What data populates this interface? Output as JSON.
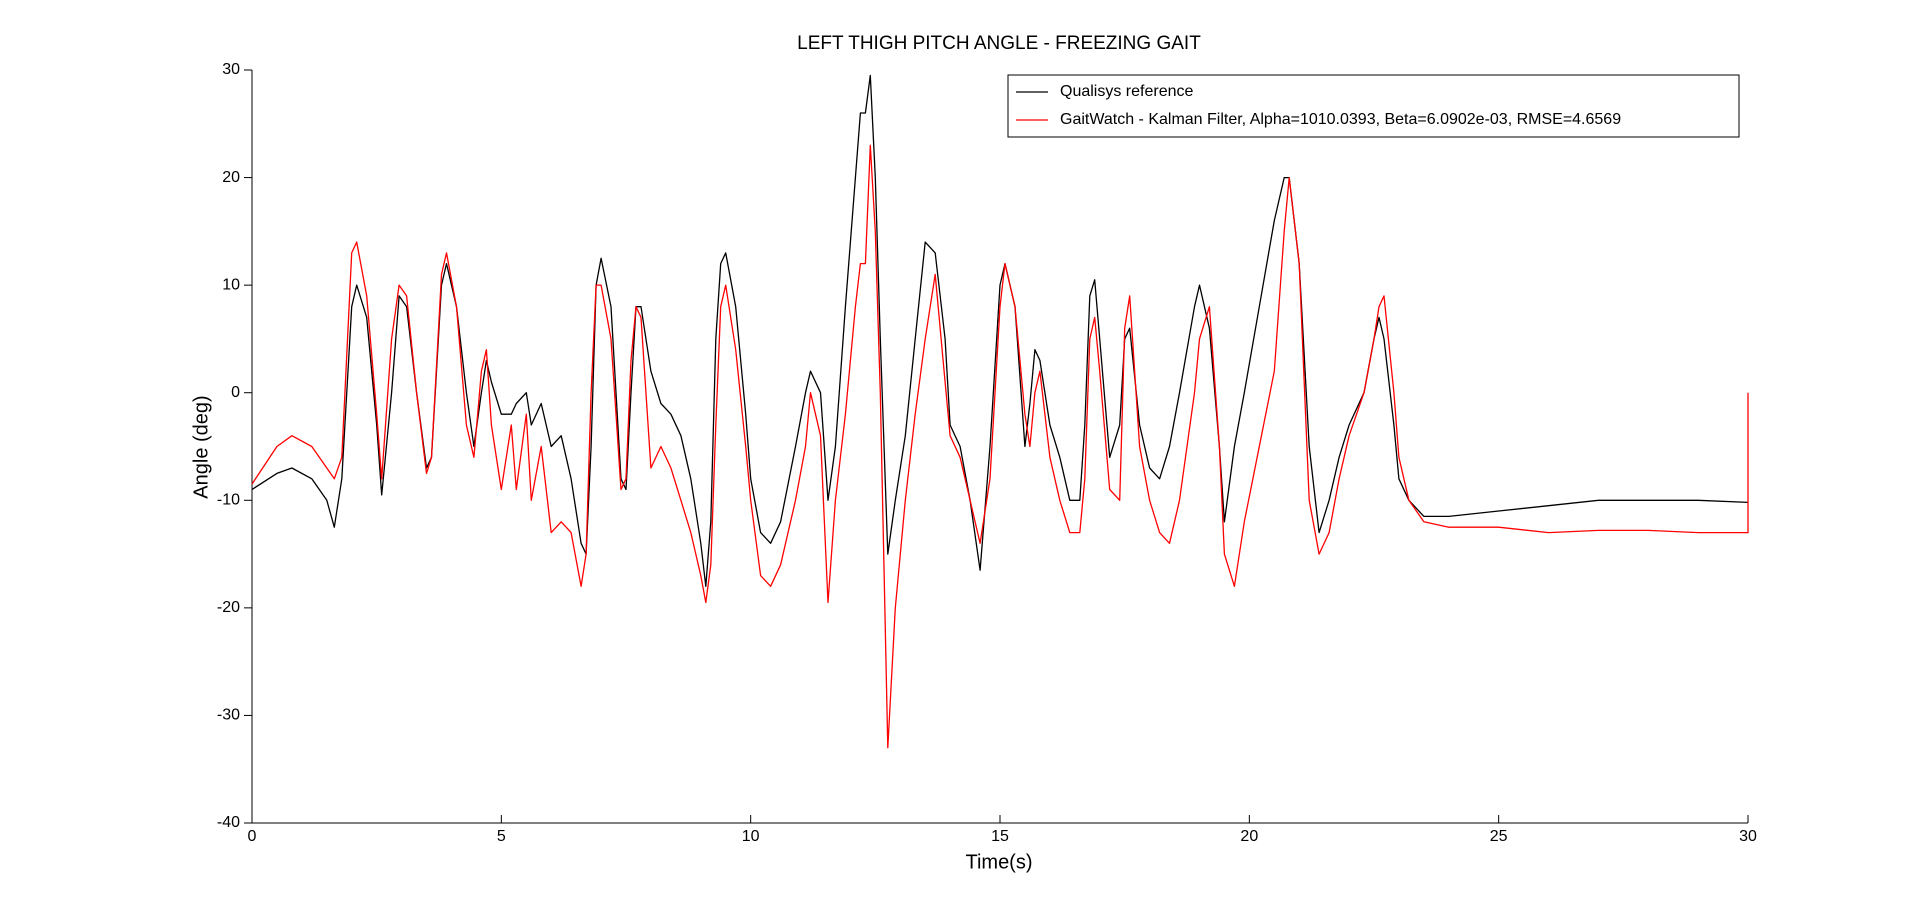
{
  "chart_data": {
    "type": "line",
    "title": "LEFT THIGH PITCH ANGLE - FREEZING GAIT",
    "x_label": "Time(s)",
    "y_label": "Angle (deg)",
    "xlim": [
      0,
      30
    ],
    "ylim": [
      -40,
      30
    ],
    "xticks": [
      0,
      5,
      10,
      15,
      20,
      25,
      30
    ],
    "yticks": [
      -40,
      -30,
      -20,
      -10,
      0,
      10,
      20,
      30
    ],
    "legend_position": "upper right",
    "x": [
      0,
      0.5,
      0.8,
      1.2,
      1.5,
      1.65,
      1.8,
      2.0,
      2.1,
      2.3,
      2.5,
      2.6,
      2.8,
      2.95,
      3.1,
      3.3,
      3.5,
      3.6,
      3.8,
      3.9,
      4.1,
      4.3,
      4.45,
      4.6,
      4.7,
      4.8,
      5.0,
      5.2,
      5.3,
      5.5,
      5.6,
      5.8,
      6.0,
      6.2,
      6.4,
      6.6,
      6.7,
      6.8,
      6.9,
      7.0,
      7.2,
      7.4,
      7.5,
      7.6,
      7.7,
      7.8,
      8.0,
      8.2,
      8.4,
      8.6,
      8.8,
      9.0,
      9.1,
      9.2,
      9.3,
      9.4,
      9.5,
      9.7,
      9.9,
      10.0,
      10.2,
      10.4,
      10.6,
      10.9,
      11.1,
      11.2,
      11.4,
      11.55,
      11.7,
      11.9,
      12.1,
      12.2,
      12.3,
      12.4,
      12.5,
      12.6,
      12.75,
      12.9,
      13.1,
      13.3,
      13.5,
      13.7,
      13.9,
      14.0,
      14.2,
      14.4,
      14.6,
      14.8,
      15.0,
      15.1,
      15.3,
      15.5,
      15.6,
      15.7,
      15.8,
      16.0,
      16.2,
      16.4,
      16.6,
      16.7,
      16.8,
      16.9,
      17.0,
      17.2,
      17.4,
      17.5,
      17.6,
      17.8,
      18.0,
      18.2,
      18.4,
      18.6,
      18.9,
      19.0,
      19.2,
      19.4,
      19.5,
      19.7,
      19.9,
      20.2,
      20.5,
      20.7,
      20.8,
      21.0,
      21.2,
      21.4,
      21.6,
      21.8,
      22.0,
      22.3,
      22.5,
      22.6,
      22.7,
      22.9,
      23.0,
      23.2,
      23.5,
      24,
      25,
      26,
      27,
      28,
      29,
      30,
      30
    ],
    "series": [
      {
        "name": "Qualisys reference",
        "color": "#000000",
        "values": [
          -9,
          -7.5,
          -7,
          -8,
          -10,
          -12.5,
          -8,
          8,
          10,
          7,
          -3,
          -9.5,
          0,
          9,
          8,
          0,
          -7,
          -6,
          10,
          12,
          8,
          0,
          -5,
          0,
          3,
          1,
          -2,
          -2,
          -1,
          0,
          -3,
          -1,
          -5,
          -4,
          -8,
          -14,
          -15,
          -5,
          10,
          12.5,
          8,
          -8,
          -9,
          0,
          8,
          8,
          2,
          -1,
          -2,
          -4,
          -8,
          -14,
          -18,
          -12,
          5,
          12,
          13,
          8,
          -2,
          -8,
          -13,
          -14,
          -12,
          -5,
          0,
          2,
          0,
          -10,
          -5,
          8,
          20,
          26,
          26,
          29.5,
          20,
          5,
          -15,
          -10,
          -4,
          5,
          14,
          13,
          5,
          -3,
          -5,
          -10,
          -16.5,
          -5,
          10,
          12,
          8,
          -5,
          -1,
          4,
          3,
          -3,
          -6,
          -10,
          -10,
          -3,
          9,
          10.5,
          5,
          -6,
          -3,
          5,
          6,
          -3,
          -7,
          -8,
          -5,
          0,
          8,
          10,
          6,
          -5,
          -12,
          -5,
          0,
          8,
          16,
          20,
          20,
          12,
          -5,
          -13,
          -10,
          -6,
          -3,
          0,
          5,
          7,
          5,
          -3,
          -8,
          -10,
          -11.5,
          -11.5,
          -11,
          -10.5,
          -10,
          -10,
          -10,
          -10.2,
          -10.2
        ]
      },
      {
        "name": "GaitWatch - Kalman Filter, Alpha=1010.0393, Beta=6.0902e-03, RMSE=4.6569",
        "color": "#ff0000",
        "values": [
          -8.5,
          -5,
          -4,
          -5,
          -7,
          -8,
          -6,
          13,
          14,
          9,
          -2,
          -8,
          5,
          10,
          9,
          0,
          -7.5,
          -6,
          11,
          13,
          8,
          -3,
          -6,
          2,
          4,
          -3,
          -9,
          -3,
          -9,
          -2,
          -10,
          -5,
          -13,
          -12,
          -13,
          -18,
          -15,
          0,
          10,
          10,
          5,
          -9,
          -8,
          3,
          8,
          7,
          -7,
          -5,
          -7,
          -10,
          -13,
          -17,
          -19.5,
          -16,
          -3,
          8,
          10,
          4,
          -5,
          -10,
          -17,
          -18,
          -16,
          -10,
          -5,
          0,
          -4,
          -19.5,
          -10,
          -2,
          8,
          12,
          12,
          23,
          15,
          0,
          -33,
          -20,
          -10,
          -2,
          5,
          11,
          1,
          -4,
          -6,
          -10,
          -14,
          -8,
          8,
          12,
          8,
          -2,
          -5,
          0,
          2,
          -6,
          -10,
          -13,
          -13,
          -8,
          5,
          7,
          2,
          -9,
          -10,
          6,
          9,
          -5,
          -10,
          -13,
          -14,
          -10,
          0,
          5,
          8,
          -5,
          -15,
          -18,
          -12,
          -5,
          2,
          15,
          20,
          12,
          -10,
          -15,
          -13,
          -8,
          -4,
          0,
          5,
          8,
          9,
          0,
          -6,
          -10,
          -12,
          -12.5,
          -12.5,
          -13,
          -12.8,
          -12.8,
          -13,
          -13,
          0
        ]
      }
    ]
  }
}
